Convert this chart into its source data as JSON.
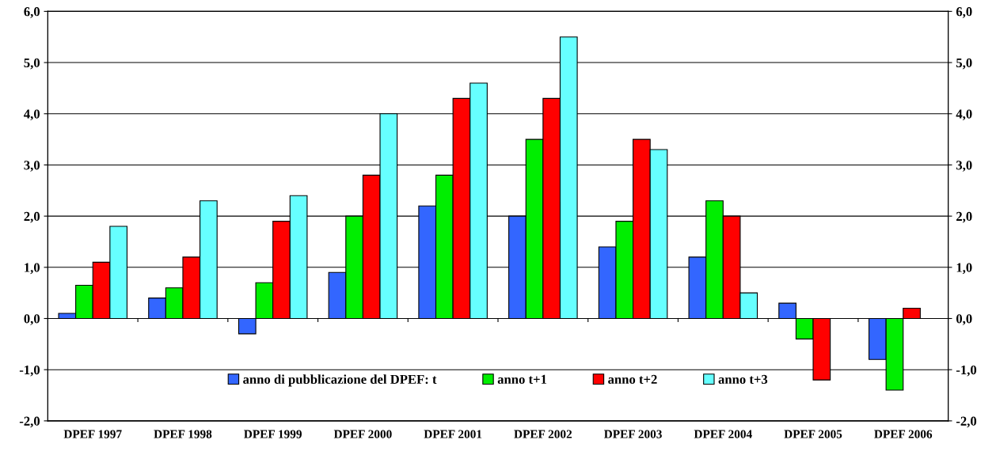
{
  "chart_data": {
    "type": "bar",
    "categories": [
      "DPEF 1997",
      "DPEF 1998",
      "DPEF 1999",
      "DPEF 2000",
      "DPEF 2001",
      "DPEF 2002",
      "DPEF 2003",
      "DPEF 2004",
      "DPEF 2005",
      "DPEF 2006"
    ],
    "series": [
      {
        "name": "anno di pubblicazione del DPEF: t",
        "color": "#3366ff",
        "values": [
          0.1,
          0.4,
          -0.3,
          0.9,
          2.2,
          2.0,
          1.4,
          1.2,
          0.3,
          -0.8
        ]
      },
      {
        "name": "anno t+1",
        "color": "#00ee00",
        "values": [
          0.65,
          0.6,
          0.7,
          2.0,
          2.8,
          3.5,
          1.9,
          2.3,
          -0.4,
          -1.4
        ]
      },
      {
        "name": "anno t+2",
        "color": "#ff0000",
        "values": [
          1.1,
          1.2,
          1.9,
          2.8,
          4.3,
          4.3,
          3.5,
          2.0,
          -1.2,
          0.2
        ]
      },
      {
        "name": "anno t+3",
        "color": "#66ffff",
        "values": [
          1.8,
          2.3,
          2.4,
          4.0,
          4.6,
          5.5,
          3.3,
          0.5,
          null,
          null
        ]
      }
    ],
    "ylim": [
      -2,
      6
    ],
    "yticks": [
      {
        "value": -2,
        "label": "-2,0"
      },
      {
        "value": -1,
        "label": "-1,0"
      },
      {
        "value": 0,
        "label": "0,0"
      },
      {
        "value": 1,
        "label": "1,0"
      },
      {
        "value": 2,
        "label": "2,0"
      },
      {
        "value": 3,
        "label": "3,0"
      },
      {
        "value": 4,
        "label": "4,0"
      },
      {
        "value": 5,
        "label": "5,0"
      },
      {
        "value": 6,
        "label": "6,0"
      }
    ],
    "y2lim": [
      -2,
      6
    ],
    "y2ticks": [
      {
        "value": -2,
        "label": "-2,0"
      },
      {
        "value": -1,
        "label": "-1,0"
      },
      {
        "value": 0,
        "label": "0,0"
      },
      {
        "value": 1,
        "label": "1,0"
      },
      {
        "value": 2,
        "label": "2,0"
      },
      {
        "value": 3,
        "label": "3,0"
      },
      {
        "value": 4,
        "label": "4,0"
      },
      {
        "value": 5,
        "label": "5,0"
      },
      {
        "value": 6,
        "label": "6,0"
      }
    ],
    "grid": "y",
    "legend": "bottom"
  }
}
